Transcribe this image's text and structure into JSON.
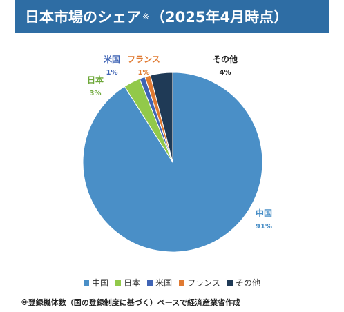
{
  "title": {
    "main": "日本市場のシェア",
    "mark": "※",
    "suffix": "（2025年4月時点）"
  },
  "note": "※登録機体数（国の登録制度に基づく）ベースで経済産業省作成",
  "colors": {
    "title_bg": "#2e6da4",
    "china": "#4a8fc7",
    "japan": "#92c94a",
    "usa": "#3f64b5",
    "france": "#e07a32",
    "other": "#1f3a56"
  },
  "chart_data": {
    "type": "pie",
    "title": "日本市場のシェア※（2025年4月時点）",
    "slices": [
      {
        "label": "中国",
        "value": 91,
        "display": "91%",
        "color": "#4a8fc7"
      },
      {
        "label": "日本",
        "value": 3,
        "display": "3%",
        "color": "#92c94a"
      },
      {
        "label": "米国",
        "value": 1,
        "display": "1%",
        "color": "#3f64b5"
      },
      {
        "label": "フランス",
        "value": 1,
        "display": "1%",
        "color": "#e07a32"
      },
      {
        "label": "その他",
        "value": 4,
        "display": "4%",
        "color": "#1f3a56"
      }
    ],
    "legend_position": "bottom"
  }
}
